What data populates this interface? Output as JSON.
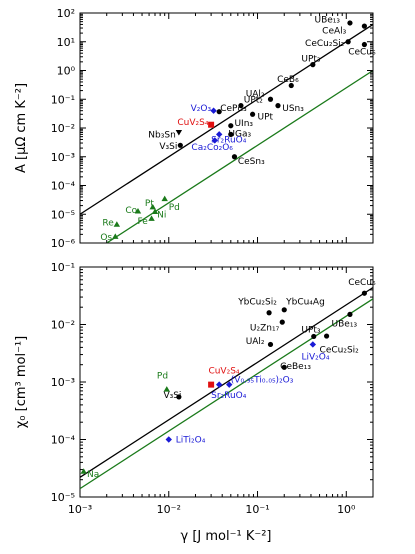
{
  "colors": {
    "black": "#000000",
    "green": "#1a7a1a",
    "blue": "#1a1ad6",
    "red": "#e01010"
  },
  "chart_data": [
    {
      "type": "scatter",
      "xscale": "log",
      "yscale": "log",
      "xlim": [
        0.001,
        2
      ],
      "ylim": [
        1e-06,
        100
      ],
      "ylabel": "A [μΩ cm K⁻²]",
      "yticks": [
        {
          "value": 100,
          "label": "10²"
        },
        {
          "value": 10,
          "label": "10¹"
        },
        {
          "value": 1,
          "label": "10⁰"
        },
        {
          "value": 0.1,
          "label": "10⁻¹"
        },
        {
          "value": 0.01,
          "label": "10⁻²"
        },
        {
          "value": 0.001,
          "label": "10⁻³"
        },
        {
          "value": 0.0001,
          "label": "10⁻⁴"
        },
        {
          "value": 1e-05,
          "label": "10⁻⁵"
        },
        {
          "value": 1e-06,
          "label": "10⁻⁶"
        }
      ],
      "lines": [
        {
          "color": "black",
          "x": [
            0.001,
            2
          ],
          "y": [
            1e-05,
            40
          ]
        },
        {
          "color": "green",
          "x": [
            0.002,
            2
          ],
          "y": [
            1e-06,
            1.0
          ]
        }
      ],
      "points": [
        {
          "label": "UBe₁₃",
          "x": 1.1,
          "y": 45,
          "color": "black",
          "marker": "circle",
          "lx": 0.85,
          "ly": 60,
          "anchor": "end"
        },
        {
          "label": "CeAl₃",
          "x": 1.6,
          "y": 35,
          "color": "black",
          "marker": "circle",
          "lx": 1.0,
          "ly": 25,
          "anchor": "end"
        },
        {
          "label": "CeCu₂Si₂",
          "x": 1.05,
          "y": 10,
          "color": "black",
          "marker": "circle",
          "lx": 0.95,
          "ly": 9,
          "anchor": "end"
        },
        {
          "label": "CeCu₆",
          "x": 1.6,
          "y": 8,
          "color": "black",
          "marker": "circle",
          "lx": 1.5,
          "ly": 4.5,
          "anchor": "middle"
        },
        {
          "label": "UPt₃",
          "x": 0.42,
          "y": 1.6,
          "color": "black",
          "marker": "circle",
          "lx": 0.4,
          "ly": 2.6,
          "anchor": "middle"
        },
        {
          "label": "CeB₆",
          "x": 0.24,
          "y": 0.3,
          "color": "black",
          "marker": "circle",
          "lx": 0.22,
          "ly": 0.5,
          "anchor": "middle"
        },
        {
          "label": "UAl₂",
          "x": 0.14,
          "y": 0.1,
          "color": "black",
          "marker": "circle",
          "lx": 0.12,
          "ly": 0.16,
          "anchor": "end"
        },
        {
          "label": "USn₃",
          "x": 0.17,
          "y": 0.06,
          "color": "black",
          "marker": "circle",
          "lx": 0.19,
          "ly": 0.05,
          "anchor": "start"
        },
        {
          "label": "UPt₂",
          "x": 0.065,
          "y": 0.06,
          "color": "black",
          "marker": "circle",
          "lx": 0.07,
          "ly": 0.1,
          "anchor": "start"
        },
        {
          "label": "UPt",
          "x": 0.088,
          "y": 0.03,
          "color": "black",
          "marker": "circle",
          "lx": 0.1,
          "ly": 0.025,
          "anchor": "start"
        },
        {
          "label": "CePd₃",
          "x": 0.037,
          "y": 0.037,
          "color": "black",
          "marker": "circle",
          "lx": 0.038,
          "ly": 0.05,
          "anchor": "start"
        },
        {
          "label": "UIn₃",
          "x": 0.05,
          "y": 0.012,
          "color": "black",
          "marker": "circle",
          "lx": 0.055,
          "ly": 0.015,
          "anchor": "start"
        },
        {
          "label": "UGa₃",
          "x": 0.05,
          "y": 0.006,
          "color": "black",
          "marker": "circle",
          "lx": 0.047,
          "ly": 0.0065,
          "anchor": "start"
        },
        {
          "label": "V₂O₃",
          "x": 0.032,
          "y": 0.04,
          "color": "blue",
          "marker": "diamond",
          "lx": 0.03,
          "ly": 0.05,
          "anchor": "end"
        },
        {
          "label": "CuV₂S₄",
          "x": 0.03,
          "y": 0.013,
          "color": "red",
          "marker": "square",
          "lx": 0.028,
          "ly": 0.016,
          "anchor": "end"
        },
        {
          "label": "Sr₂RuO₄",
          "x": 0.037,
          "y": 0.006,
          "color": "blue",
          "marker": "diamond",
          "lx": 0.03,
          "ly": 0.004,
          "anchor": "start"
        },
        {
          "label": "Ca₂Co₂O₆",
          "x": 0.033,
          "y": 0.0037,
          "color": "blue",
          "marker": "diamond",
          "lx": 0.018,
          "ly": 0.0022,
          "anchor": "start"
        },
        {
          "label": "Nb₃Sn",
          "x": 0.013,
          "y": 0.007,
          "color": "black",
          "marker": "triangle-down",
          "lx": 0.012,
          "ly": 0.006,
          "anchor": "end"
        },
        {
          "label": "V₃Si",
          "x": 0.0135,
          "y": 0.0025,
          "color": "black",
          "marker": "circle",
          "lx": 0.0125,
          "ly": 0.0024,
          "anchor": "end"
        },
        {
          "label": "CeSn₃",
          "x": 0.055,
          "y": 0.001,
          "color": "black",
          "marker": "circle",
          "lx": 0.06,
          "ly": 0.0007,
          "anchor": "start"
        },
        {
          "label": "Pd",
          "x": 0.009,
          "y": 3.5e-05,
          "color": "green",
          "marker": "triangle-up",
          "lx": 0.01,
          "ly": 1.8e-05,
          "anchor": "start"
        },
        {
          "label": "Pt",
          "x": 0.0066,
          "y": 1.8e-05,
          "color": "green",
          "marker": "triangle-up",
          "lx": 0.0068,
          "ly": 2.5e-05,
          "anchor": "end"
        },
        {
          "label": "Co",
          "x": 0.0045,
          "y": 1.3e-05,
          "color": "green",
          "marker": "triangle-up",
          "lx": 0.0044,
          "ly": 1.4e-05,
          "anchor": "end"
        },
        {
          "label": "Ni",
          "x": 0.007,
          "y": 1.25e-05,
          "color": "green",
          "marker": "triangle-up",
          "lx": 0.0074,
          "ly": 9.8e-06,
          "anchor": "start"
        },
        {
          "label": "Fe",
          "x": 0.0064,
          "y": 7.2e-06,
          "color": "green",
          "marker": "triangle-up",
          "lx": 0.0058,
          "ly": 5.8e-06,
          "anchor": "end"
        },
        {
          "label": "Re",
          "x": 0.0026,
          "y": 4.5e-06,
          "color": "green",
          "marker": "triangle-up",
          "lx": 0.0024,
          "ly": 5.2e-06,
          "anchor": "end"
        },
        {
          "label": "Os",
          "x": 0.0025,
          "y": 1.7e-06,
          "color": "green",
          "marker": "triangle-up",
          "lx": 0.0023,
          "ly": 1.6e-06,
          "anchor": "end"
        }
      ]
    },
    {
      "type": "scatter",
      "xscale": "log",
      "yscale": "log",
      "xlim": [
        0.001,
        2
      ],
      "ylim": [
        1e-05,
        0.1
      ],
      "xlabel": "γ [J mol⁻¹ K⁻²]",
      "ylabel": "χ₀ [cm³ mol⁻¹]",
      "xticks": [
        {
          "value": 0.001,
          "label": "10⁻³"
        },
        {
          "value": 0.01,
          "label": "10⁻²"
        },
        {
          "value": 0.1,
          "label": "10⁻¹"
        },
        {
          "value": 1,
          "label": "10⁰"
        }
      ],
      "yticks": [
        {
          "value": 0.1,
          "label": "10⁻¹"
        },
        {
          "value": 0.01,
          "label": "10⁻²"
        },
        {
          "value": 0.001,
          "label": "10⁻³"
        },
        {
          "value": 0.0001,
          "label": "10⁻⁴"
        },
        {
          "value": 1e-05,
          "label": "10⁻⁵"
        }
      ],
      "lines": [
        {
          "color": "black",
          "x": [
            0.001,
            2
          ],
          "y": [
            2.2e-05,
            0.044
          ]
        },
        {
          "color": "green",
          "x": [
            0.001,
            2
          ],
          "y": [
            1.4e-05,
            0.028
          ]
        }
      ],
      "points": [
        {
          "label": "CeCu₆",
          "x": 1.6,
          "y": 0.035,
          "color": "black",
          "marker": "circle",
          "lx": 1.5,
          "ly": 0.055,
          "anchor": "middle"
        },
        {
          "label": "YbCu₂Si₂",
          "x": 0.135,
          "y": 0.016,
          "color": "black",
          "marker": "circle",
          "lx": 0.1,
          "ly": 0.025,
          "anchor": "middle"
        },
        {
          "label": "YbCu₄Ag",
          "x": 0.2,
          "y": 0.018,
          "color": "black",
          "marker": "circle",
          "lx": 0.21,
          "ly": 0.025,
          "anchor": "start"
        },
        {
          "label": "UBe₁₃",
          "x": 1.1,
          "y": 0.015,
          "color": "black",
          "marker": "circle",
          "lx": 0.95,
          "ly": 0.0105,
          "anchor": "middle"
        },
        {
          "label": "U₂Zn₁₇",
          "x": 0.19,
          "y": 0.011,
          "color": "black",
          "marker": "circle",
          "lx": 0.12,
          "ly": 0.0088,
          "anchor": "middle"
        },
        {
          "label": "UAl₂",
          "x": 0.14,
          "y": 0.0045,
          "color": "black",
          "marker": "circle",
          "lx": 0.12,
          "ly": 0.0052,
          "anchor": "end"
        },
        {
          "label": "UPt₃",
          "x": 0.43,
          "y": 0.0062,
          "color": "black",
          "marker": "circle",
          "lx": 0.4,
          "ly": 0.0082,
          "anchor": "middle"
        },
        {
          "label": "CeCu₂Si₂",
          "x": 0.6,
          "y": 0.0063,
          "color": "black",
          "marker": "circle",
          "lx": 0.5,
          "ly": 0.0037,
          "anchor": "start"
        },
        {
          "label": "LiV₂O₄",
          "x": 0.42,
          "y": 0.0045,
          "color": "blue",
          "marker": "diamond",
          "lx": 0.45,
          "ly": 0.0028,
          "anchor": "middle"
        },
        {
          "label": "CeBe₁₃",
          "x": 0.2,
          "y": 0.0018,
          "color": "black",
          "marker": "circle",
          "lx": 0.18,
          "ly": 0.0019,
          "anchor": "start"
        },
        {
          "label": "CuV₂S₄",
          "x": 0.03,
          "y": 0.0009,
          "color": "red",
          "marker": "square",
          "lx": 0.028,
          "ly": 0.0016,
          "anchor": "start"
        },
        {
          "label": "(V₀.₉₅Ti₀.₀₅)₂O₃",
          "x": 0.048,
          "y": 0.0009,
          "color": "blue",
          "marker": "diamond",
          "lx": 0.05,
          "ly": 0.0011,
          "anchor": "start"
        },
        {
          "label": "Sr₂RuO₄",
          "x": 0.037,
          "y": 0.0009,
          "color": "blue",
          "marker": "diamond",
          "lx": 0.03,
          "ly": 0.0006,
          "anchor": "start"
        },
        {
          "label": "V₃Si",
          "x": 0.013,
          "y": 0.00055,
          "color": "black",
          "marker": "circle",
          "lx": 0.011,
          "ly": 0.0006,
          "anchor": "middle"
        },
        {
          "label": "Pd",
          "x": 0.0095,
          "y": 0.00075,
          "color": "green",
          "marker": "triangle-up",
          "lx": 0.0085,
          "ly": 0.0013,
          "anchor": "middle"
        },
        {
          "label": "LiTi₂O₄",
          "x": 0.01,
          "y": 0.0001,
          "color": "blue",
          "marker": "diamond",
          "lx": 0.012,
          "ly": 0.0001,
          "anchor": "start"
        },
        {
          "label": "Na",
          "x": 0.0011,
          "y": 2.8e-05,
          "color": "green",
          "marker": "triangle-up",
          "lx": 0.0012,
          "ly": 2.5e-05,
          "anchor": "start"
        }
      ]
    }
  ]
}
